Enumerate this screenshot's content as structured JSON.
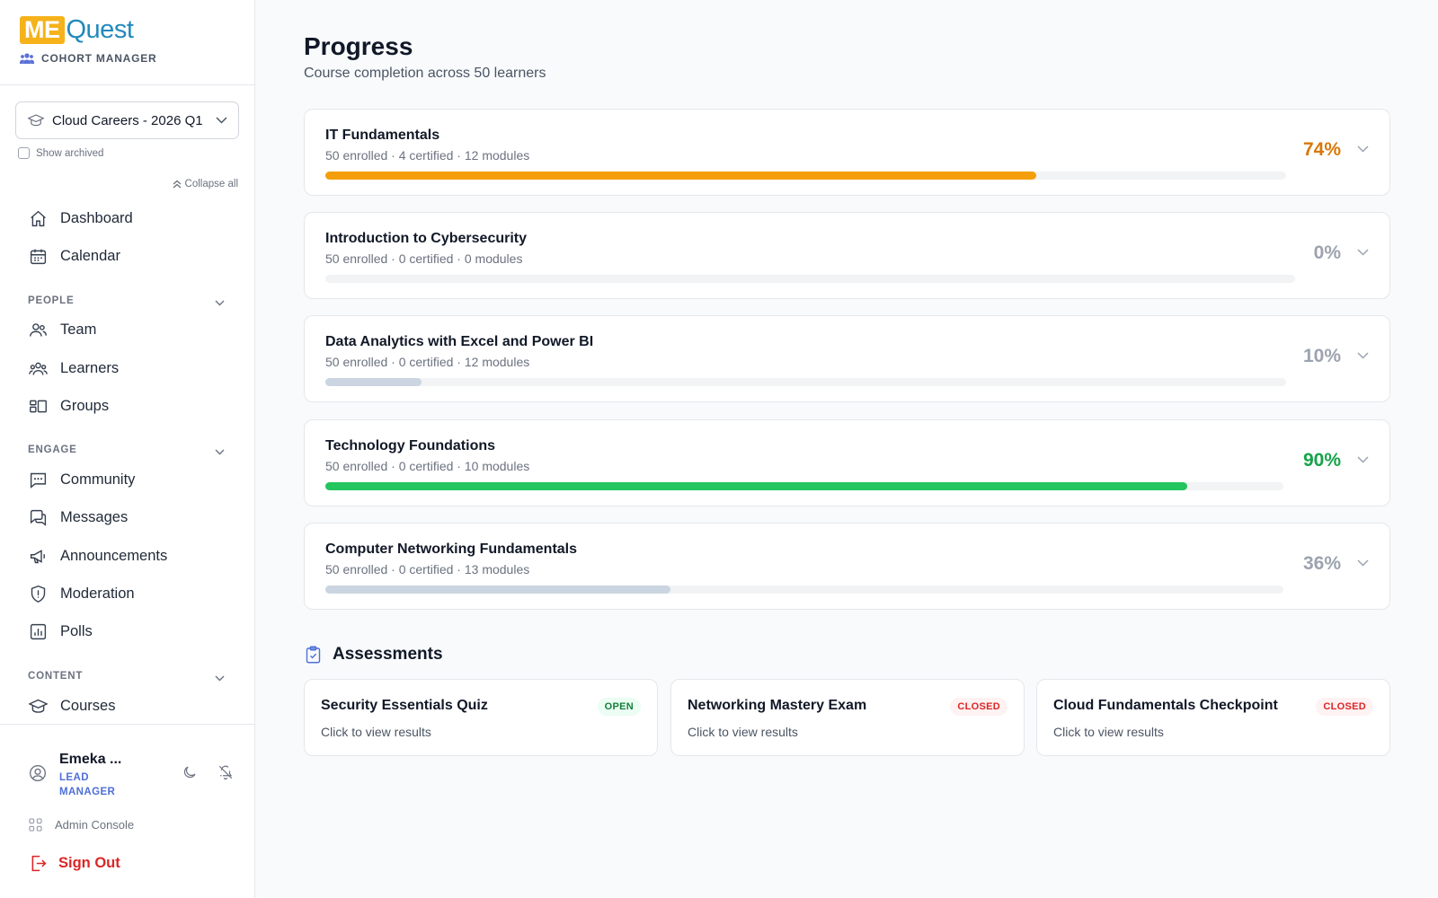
{
  "brand": {
    "logo_me": "ME",
    "logo_quest": "Quest",
    "subtitle": "COHORT MANAGER"
  },
  "cohort": {
    "selected": "Cloud Careers - 2026 Q1",
    "show_archived_label": "Show archived",
    "collapse_all_label": "Collapse all"
  },
  "nav": {
    "top": [
      {
        "label": "Dashboard",
        "icon": "home-icon"
      },
      {
        "label": "Calendar",
        "icon": "calendar-icon"
      }
    ],
    "sections": [
      {
        "title": "PEOPLE",
        "items": [
          {
            "label": "Team",
            "icon": "team-icon"
          },
          {
            "label": "Learners",
            "icon": "learners-icon"
          },
          {
            "label": "Groups",
            "icon": "groups-icon"
          }
        ]
      },
      {
        "title": "ENGAGE",
        "items": [
          {
            "label": "Community",
            "icon": "chat-icon"
          },
          {
            "label": "Messages",
            "icon": "messages-icon"
          },
          {
            "label": "Announcements",
            "icon": "megaphone-icon"
          },
          {
            "label": "Moderation",
            "icon": "shield-icon"
          },
          {
            "label": "Polls",
            "icon": "poll-icon"
          }
        ]
      },
      {
        "title": "CONTENT",
        "items": [
          {
            "label": "Courses",
            "icon": "graduation-cap-icon"
          }
        ]
      }
    ]
  },
  "user": {
    "name": "Emeka ...",
    "role": "LEAD MANAGER"
  },
  "footer": {
    "admin_console": "Admin Console",
    "sign_out": "Sign Out"
  },
  "page": {
    "title": "Progress",
    "subtitle": "Course completion across 50 learners"
  },
  "courses": [
    {
      "title": "IT Fundamentals",
      "meta": "50 enrolled · 4 certified · 12 modules",
      "percent_label": "74%",
      "percent": 74,
      "color": "#f59e0b",
      "text_color": "#d97706"
    },
    {
      "title": "Introduction to Cybersecurity",
      "meta": "50 enrolled · 0 certified · 0 modules",
      "percent_label": "0%",
      "percent": 0,
      "color": "#cbd5e1",
      "text_color": "#9ca3af"
    },
    {
      "title": "Data Analytics with Excel and Power BI",
      "meta": "50 enrolled · 0 certified · 12 modules",
      "percent_label": "10%",
      "percent": 10,
      "color": "#cbd5e1",
      "text_color": "#9ca3af"
    },
    {
      "title": "Technology Foundations",
      "meta": "50 enrolled · 0 certified · 10 modules",
      "percent_label": "90%",
      "percent": 90,
      "color": "#22c55e",
      "text_color": "#16a34a"
    },
    {
      "title": "Computer Networking Fundamentals",
      "meta": "50 enrolled · 0 certified · 13 modules",
      "percent_label": "36%",
      "percent": 36,
      "color": "#cbd5e1",
      "text_color": "#9ca3af"
    }
  ],
  "assessments": {
    "title": "Assessments",
    "items": [
      {
        "title": "Security Essentials Quiz",
        "subtitle": "Click to view results",
        "status": "OPEN"
      },
      {
        "title": "Networking Mastery Exam",
        "subtitle": "Click to view results",
        "status": "CLOSED"
      },
      {
        "title": "Cloud Fundamentals Checkpoint",
        "subtitle": "Click to view results",
        "status": "CLOSED"
      }
    ]
  }
}
